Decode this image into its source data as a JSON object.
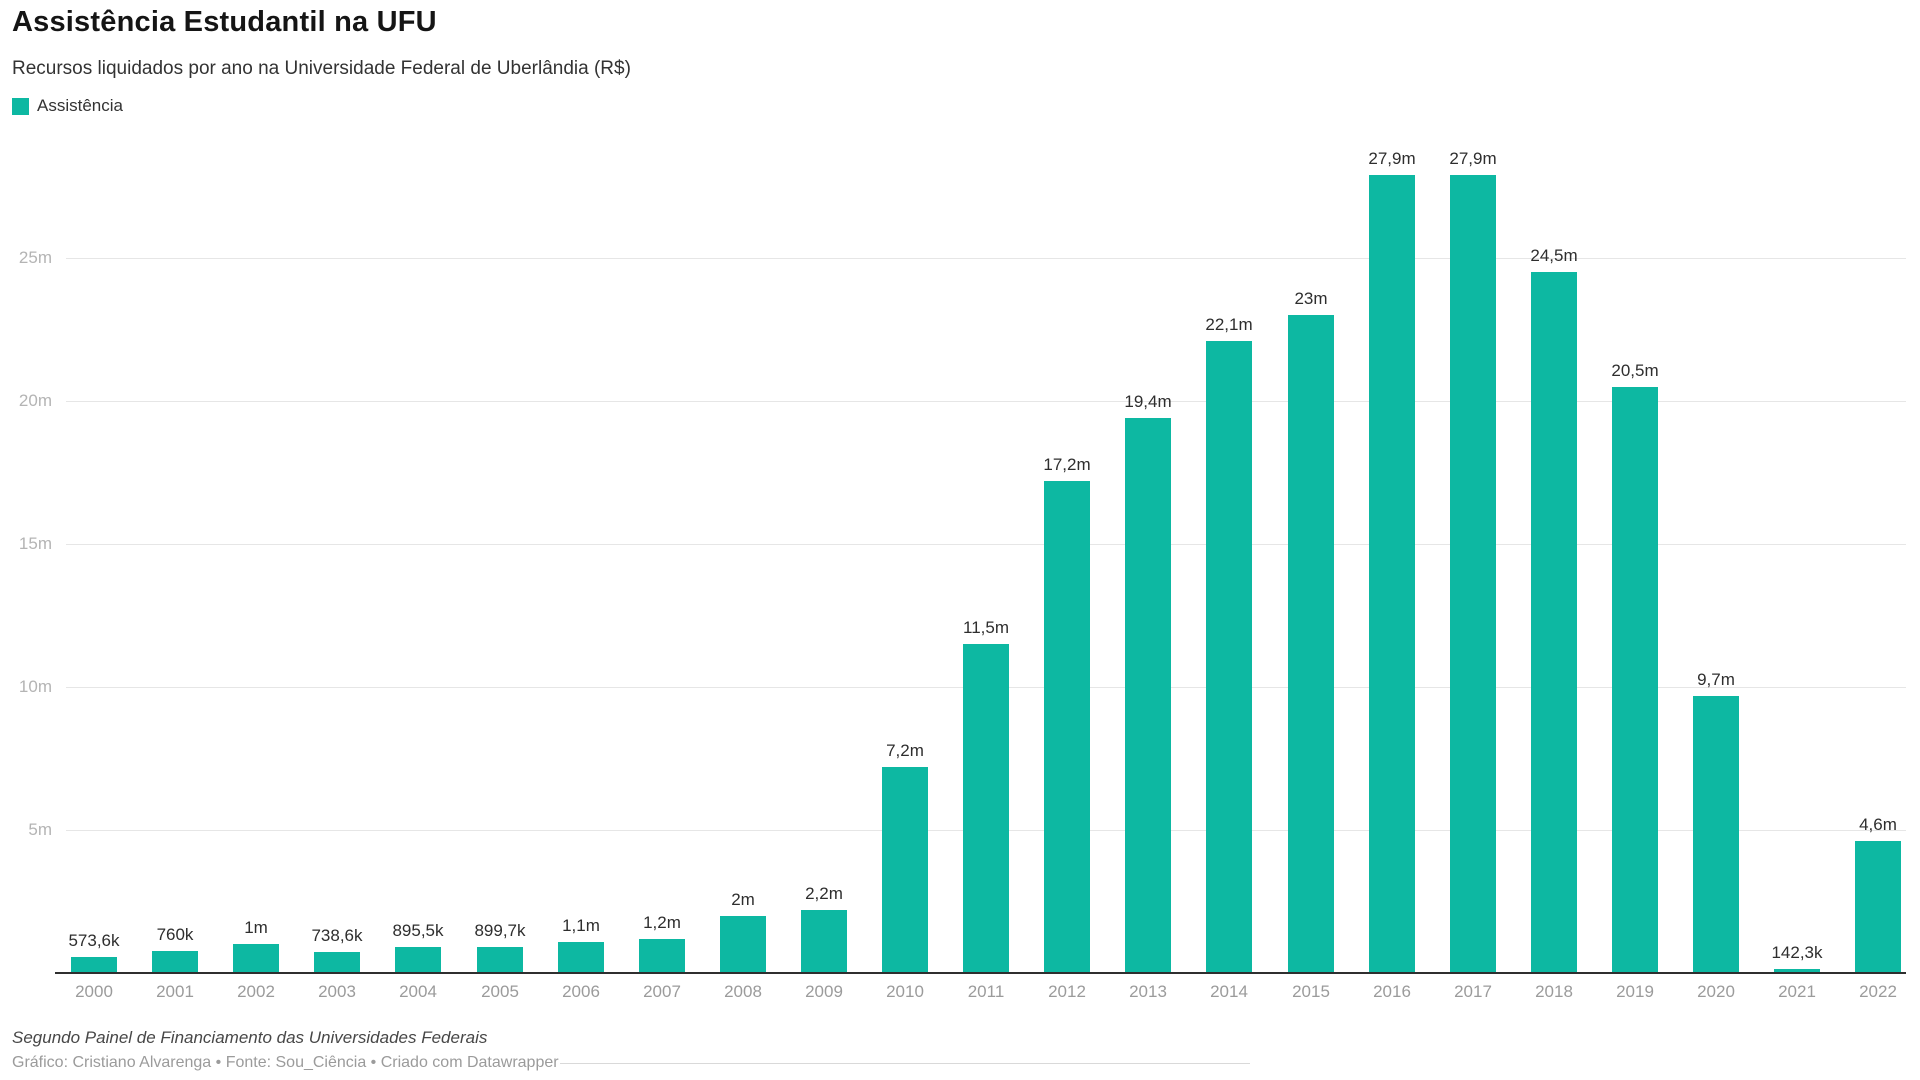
{
  "header": {
    "title": "Assistência Estudantil na UFU",
    "subtitle": "Recursos liquidados por ano na Universidade Federal de Uberlândia (R$)"
  },
  "legend": {
    "items": [
      {
        "label": "Assistência",
        "color": "#0db8a2"
      }
    ]
  },
  "chart_data": {
    "type": "bar",
    "title": "Assistência Estudantil na UFU",
    "subtitle": "Recursos liquidados por ano na Universidade Federal de Uberlândia (R$)",
    "series_name": "Assistência",
    "unit": "R$",
    "categories": [
      "2000",
      "2001",
      "2002",
      "2003",
      "2004",
      "2005",
      "2006",
      "2007",
      "2008",
      "2009",
      "2010",
      "2011",
      "2012",
      "2013",
      "2014",
      "2015",
      "2016",
      "2017",
      "2018",
      "2019",
      "2020",
      "2021",
      "2022"
    ],
    "values_millions": [
      0.5736,
      0.76,
      1.0,
      0.7386,
      0.8955,
      0.8997,
      1.1,
      1.2,
      2.0,
      2.2,
      7.2,
      11.5,
      17.2,
      19.4,
      22.1,
      23.0,
      27.9,
      27.9,
      24.5,
      20.5,
      9.7,
      0.1423,
      4.6
    ],
    "value_labels": [
      "573,6k",
      "760k",
      "1m",
      "738,6k",
      "895,5k",
      "899,7k",
      "1,1m",
      "1,2m",
      "2m",
      "2,2m",
      "7,2m",
      "11,5m",
      "17,2m",
      "19,4m",
      "22,1m",
      "23m",
      "27,9m",
      "27,9m",
      "24,5m",
      "20,5m",
      "9,7m",
      "142,3k",
      "4,6m"
    ],
    "y_ticks": [
      "5m",
      "10m",
      "15m",
      "20m",
      "25m"
    ],
    "y_tick_values": [
      5,
      10,
      15,
      20,
      25
    ],
    "ylim": [
      0,
      29
    ],
    "bar_color": "#0db8a2",
    "grid": true,
    "legend_position": "top-left"
  },
  "footer": {
    "source_line": "Segundo Painel de Financiamento das Universidades Federais",
    "credit_line": "Gráfico: Cristiano Alvarenga • Fonte: Sou_Ciência • Criado com Datawrapper"
  }
}
